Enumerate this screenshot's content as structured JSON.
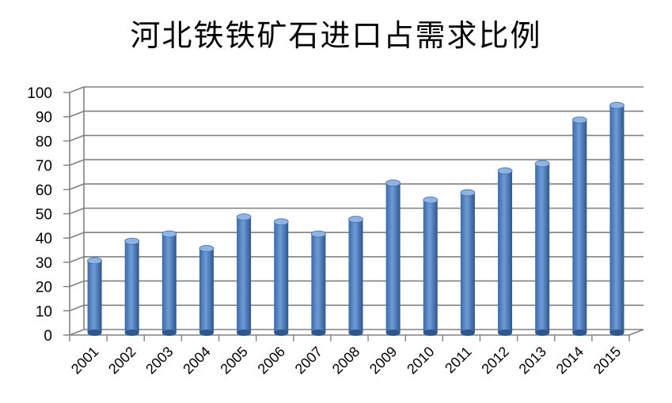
{
  "chart_data": {
    "type": "bar",
    "title": "河北铁铁矿石进口占需求比例",
    "categories": [
      "2001",
      "2002",
      "2003",
      "2004",
      "2005",
      "2006",
      "2007",
      "2008",
      "2009",
      "2010",
      "2011",
      "2012",
      "2013",
      "2014",
      "2015"
    ],
    "values": [
      30,
      38,
      41,
      35,
      48,
      46,
      41,
      47,
      62,
      55,
      58,
      67,
      70,
      88,
      94
    ],
    "ylim": [
      0,
      100
    ],
    "yticks": [
      0,
      10,
      20,
      30,
      40,
      50,
      60,
      70,
      80,
      90,
      100
    ],
    "grid": true,
    "legend": "none",
    "colors": {
      "bar": "#4a7ebb",
      "bar_dark": "#2c5a94",
      "bar_light": "#8fb4e3",
      "grid": "#808080"
    }
  }
}
